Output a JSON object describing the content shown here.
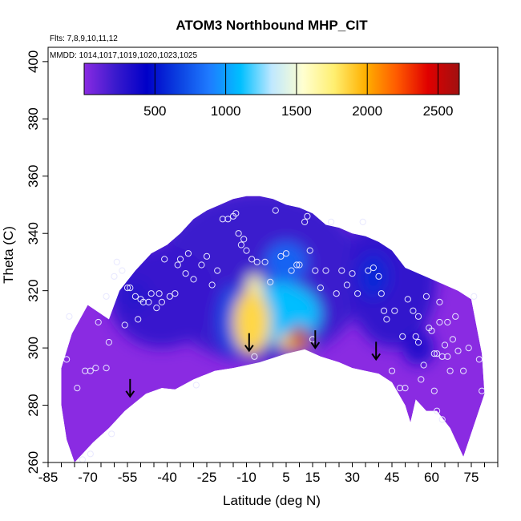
{
  "chart_data": {
    "type": "heatmap",
    "title": "ATOM3 Northbound MHP_CIT",
    "subtitle_lines": [
      "Flts: 7,8,9,10,11,12",
      "MMDD: 1014,1017,1019,1020,1023,1025"
    ],
    "xlabel": "Latitude (deg N)",
    "ylabel": "Theta (C)",
    "xlim": [
      -85,
      85
    ],
    "ylim": [
      260,
      405
    ],
    "x_ticks": [
      -85,
      -70,
      -55,
      -40,
      -25,
      -10,
      5,
      15,
      30,
      45,
      60,
      75
    ],
    "x_minor_step": 5,
    "y_ticks": [
      260,
      280,
      300,
      320,
      340,
      360,
      380,
      400
    ],
    "colorbar": {
      "range": [
        0,
        2650
      ],
      "ticks": [
        500,
        1000,
        1500,
        2000,
        2500
      ],
      "colors": [
        "#8a2be2",
        "#3a1acd",
        "#0000c8",
        "#0b3fe0",
        "#1e7bff",
        "#00bfff",
        "#bfe8ff",
        "#ffffd0",
        "#ffef70",
        "#ffb000",
        "#ff5a00",
        "#e00000",
        "#a01010"
      ]
    },
    "surface_boundary": {
      "top": [
        [
          -62,
          310
        ],
        [
          -58,
          320
        ],
        [
          -52,
          327
        ],
        [
          -46,
          333
        ],
        [
          -40,
          336
        ],
        [
          -35,
          340
        ],
        [
          -30,
          345
        ],
        [
          -25,
          348
        ],
        [
          -20,
          350
        ],
        [
          -15,
          352
        ],
        [
          -10,
          353
        ],
        [
          -5,
          353
        ],
        [
          0,
          352
        ],
        [
          5,
          350
        ],
        [
          10,
          349
        ],
        [
          15,
          347
        ],
        [
          20,
          343
        ],
        [
          25,
          342
        ],
        [
          30,
          340
        ],
        [
          35,
          339
        ],
        [
          40,
          337
        ],
        [
          45,
          334
        ],
        [
          50,
          328
        ],
        [
          55,
          326
        ],
        [
          60,
          324
        ],
        [
          65,
          322
        ],
        [
          70,
          320
        ],
        [
          75,
          317
        ],
        [
          79,
          298
        ],
        [
          80,
          284
        ]
      ],
      "bottom": [
        [
          -75,
          260
        ],
        [
          -68,
          267
        ],
        [
          -62,
          272
        ],
        [
          -56,
          278
        ],
        [
          -48,
          284
        ],
        [
          -42,
          286
        ],
        [
          -37,
          285.5
        ],
        [
          -30,
          289
        ],
        [
          -22,
          292
        ],
        [
          -15,
          293
        ],
        [
          -5,
          295
        ],
        [
          5,
          298
        ],
        [
          12,
          299.5
        ],
        [
          18,
          297
        ],
        [
          25,
          295
        ],
        [
          30,
          293
        ],
        [
          35,
          292
        ],
        [
          40,
          291
        ],
        [
          45,
          288
        ],
        [
          50,
          280
        ],
        [
          52,
          274
        ],
        [
          54,
          282
        ],
        [
          58,
          278
        ],
        [
          62,
          278
        ],
        [
          67,
          272
        ],
        [
          72,
          262
        ]
      ],
      "left": [
        [
          -75,
          260
        ],
        [
          -78,
          268
        ],
        [
          -80,
          280
        ],
        [
          -80,
          293
        ],
        [
          -76,
          305
        ],
        [
          -70,
          315
        ]
      ]
    },
    "hotspots": [
      {
        "lat": -8,
        "theta": 309,
        "value": 1850,
        "rx": 7,
        "ry": 11
      },
      {
        "lat": -7,
        "theta": 320,
        "value": 1650,
        "rx": 3,
        "ry": 6
      },
      {
        "lat": 10,
        "theta": 304,
        "value": 2550,
        "rx": 3,
        "ry": 4
      },
      {
        "lat": 8,
        "theta": 302,
        "value": 1900,
        "rx": 6,
        "ry": 3
      },
      {
        "lat": 2,
        "theta": 312,
        "value": 1100,
        "rx": 16,
        "ry": 11
      },
      {
        "lat": 5,
        "theta": 330,
        "value": 800,
        "rx": 8,
        "ry": 7
      },
      {
        "lat": -15,
        "theta": 310,
        "value": 700,
        "rx": 6,
        "ry": 12
      },
      {
        "lat": -52,
        "theta": 318,
        "value": 280,
        "rx": 6,
        "ry": 6
      },
      {
        "lat": 55,
        "theta": 300,
        "value": 320,
        "rx": 6,
        "ry": 6
      },
      {
        "lat": 38,
        "theta": 325,
        "value": 580,
        "rx": 6,
        "ry": 8
      }
    ],
    "tropopause_arrows": [
      [
        -54,
        283
      ],
      [
        -9,
        299
      ],
      [
        16,
        300
      ],
      [
        39,
        296
      ]
    ],
    "sample_points": [
      [
        -78,
        296
      ],
      [
        -77,
        311
      ],
      [
        -74,
        286
      ],
      [
        -72,
        261
      ],
      [
        -71,
        292
      ],
      [
        -69,
        263
      ],
      [
        -69,
        292
      ],
      [
        -67,
        293
      ],
      [
        -66,
        309
      ],
      [
        -63,
        318
      ],
      [
        -62,
        302
      ],
      [
        -63,
        293
      ],
      [
        -61,
        270
      ],
      [
        -60,
        325
      ],
      [
        -59,
        330
      ],
      [
        -57,
        327
      ],
      [
        -56,
        308
      ],
      [
        -55,
        321
      ],
      [
        -54,
        321
      ],
      [
        -52,
        318
      ],
      [
        -51,
        310
      ],
      [
        -50,
        317
      ],
      [
        -49,
        316
      ],
      [
        -47,
        316
      ],
      [
        -46,
        319
      ],
      [
        -44,
        314
      ],
      [
        -43,
        319
      ],
      [
        -42,
        316
      ],
      [
        -41,
        331
      ],
      [
        -39,
        318
      ],
      [
        -37,
        319
      ],
      [
        -36,
        329
      ],
      [
        -35,
        331
      ],
      [
        -33,
        326
      ],
      [
        -32,
        333
      ],
      [
        -30,
        324
      ],
      [
        -29,
        287
      ],
      [
        -27,
        329
      ],
      [
        -25,
        332
      ],
      [
        -23,
        322
      ],
      [
        -21,
        327
      ],
      [
        -19,
        345
      ],
      [
        -17,
        345
      ],
      [
        -15,
        346
      ],
      [
        -14,
        347
      ],
      [
        -13,
        340
      ],
      [
        -12,
        336
      ],
      [
        -11,
        338
      ],
      [
        -10,
        334
      ],
      [
        -8,
        331
      ],
      [
        -7,
        297
      ],
      [
        -6,
        330
      ],
      [
        -3,
        330
      ],
      [
        -1,
        323
      ],
      [
        1,
        348
      ],
      [
        3,
        332
      ],
      [
        5,
        333
      ],
      [
        7,
        327
      ],
      [
        9,
        329
      ],
      [
        10,
        329
      ],
      [
        12,
        344
      ],
      [
        13,
        346
      ],
      [
        14,
        334
      ],
      [
        15,
        303
      ],
      [
        16,
        327
      ],
      [
        18,
        321
      ],
      [
        20,
        327
      ],
      [
        22,
        344
      ],
      [
        24,
        319
      ],
      [
        26,
        327
      ],
      [
        28,
        322
      ],
      [
        30,
        326
      ],
      [
        32,
        319
      ],
      [
        34,
        344
      ],
      [
        36,
        327
      ],
      [
        38,
        328
      ],
      [
        40,
        325
      ],
      [
        41,
        319
      ],
      [
        42,
        313
      ],
      [
        43,
        310
      ],
      [
        45,
        292
      ],
      [
        46,
        313
      ],
      [
        48,
        286
      ],
      [
        49,
        304
      ],
      [
        50,
        286
      ],
      [
        51,
        317
      ],
      [
        53,
        313
      ],
      [
        54,
        304
      ],
      [
        55,
        311
      ],
      [
        56,
        289
      ],
      [
        57,
        294
      ],
      [
        58,
        318
      ],
      [
        59,
        307
      ],
      [
        60,
        306
      ],
      [
        61,
        285
      ],
      [
        61,
        298
      ],
      [
        62,
        298
      ],
      [
        63,
        316
      ],
      [
        63,
        309
      ],
      [
        64,
        297
      ],
      [
        65,
        301
      ],
      [
        66,
        309
      ],
      [
        66,
        297
      ],
      [
        67,
        292
      ],
      [
        68,
        303
      ],
      [
        69,
        311
      ],
      [
        70,
        299
      ],
      [
        72,
        292
      ],
      [
        74,
        300
      ],
      [
        76,
        318
      ],
      [
        78,
        296
      ],
      [
        79,
        285
      ],
      [
        55,
        302
      ],
      [
        64,
        275
      ],
      [
        62,
        278
      ]
    ]
  }
}
